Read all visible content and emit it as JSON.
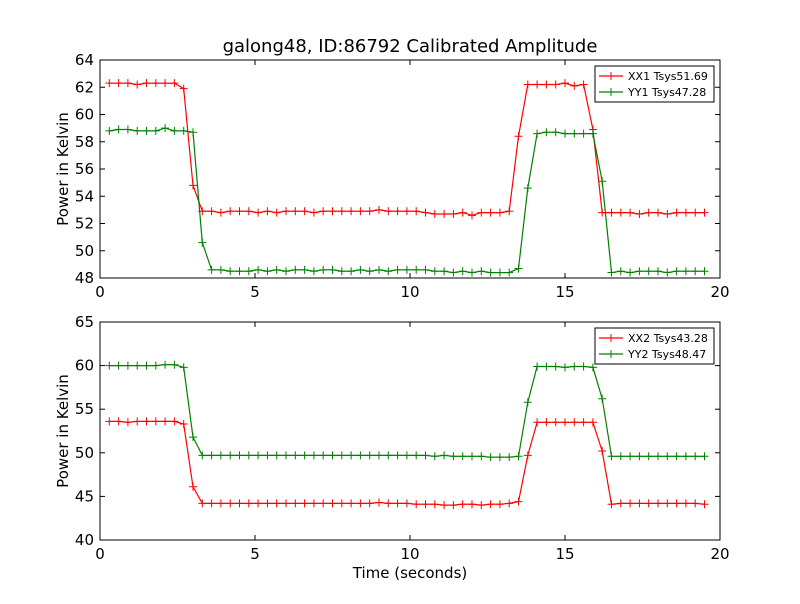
{
  "chart_data": [
    {
      "type": "line",
      "title": "galong48, ID:86792 Calibrated Amplitude",
      "xlabel": "",
      "ylabel": "Power in Kelvin",
      "xlim": [
        0,
        20
      ],
      "ylim": [
        48,
        64
      ],
      "xticks": [
        "0",
        "5",
        "10",
        "15",
        "20"
      ],
      "yticks": [
        "48",
        "50",
        "52",
        "54",
        "56",
        "58",
        "60",
        "62",
        "64"
      ],
      "legend_position": "top-right",
      "grid": false,
      "x": [
        0.3,
        0.6,
        0.9,
        1.2,
        1.5,
        1.8,
        2.1,
        2.4,
        2.7,
        3.0,
        3.3,
        3.6,
        3.9,
        4.2,
        4.5,
        4.8,
        5.1,
        5.4,
        5.7,
        6.0,
        6.3,
        6.6,
        6.9,
        7.2,
        7.5,
        7.8,
        8.1,
        8.4,
        8.7,
        9.0,
        9.3,
        9.6,
        9.9,
        10.2,
        10.5,
        10.8,
        11.1,
        11.4,
        11.7,
        12.0,
        12.3,
        12.6,
        12.9,
        13.2,
        13.5,
        13.8,
        14.1,
        14.4,
        14.7,
        15.0,
        15.3,
        15.6,
        15.9,
        16.2,
        16.5,
        16.8,
        17.1,
        17.4,
        17.7,
        18.0,
        18.3,
        18.6,
        18.9,
        19.2,
        19.5
      ],
      "series": [
        {
          "name": "XX1 Tsys51.69",
          "color": "#ff0000",
          "values": [
            62.3,
            62.3,
            62.3,
            62.2,
            62.3,
            62.3,
            62.3,
            62.3,
            61.9,
            54.8,
            52.9,
            52.9,
            52.8,
            52.9,
            52.9,
            52.9,
            52.8,
            52.9,
            52.8,
            52.9,
            52.9,
            52.9,
            52.8,
            52.9,
            52.9,
            52.9,
            52.9,
            52.9,
            52.9,
            53.0,
            52.9,
            52.9,
            52.9,
            52.9,
            52.8,
            52.7,
            52.7,
            52.7,
            52.8,
            52.6,
            52.8,
            52.8,
            52.8,
            52.9,
            58.4,
            62.2,
            62.2,
            62.2,
            62.2,
            62.3,
            62.1,
            62.2,
            58.9,
            52.8,
            52.8,
            52.8,
            52.8,
            52.7,
            52.8,
            52.8,
            52.7,
            52.8,
            52.8,
            52.8,
            52.8
          ]
        },
        {
          "name": "YY1 Tsys47.28",
          "color": "#008000",
          "values": [
            58.8,
            58.9,
            58.9,
            58.8,
            58.8,
            58.8,
            59.0,
            58.8,
            58.8,
            58.7,
            50.6,
            48.6,
            48.6,
            48.5,
            48.5,
            48.5,
            48.6,
            48.5,
            48.6,
            48.5,
            48.6,
            48.6,
            48.5,
            48.6,
            48.6,
            48.5,
            48.5,
            48.6,
            48.5,
            48.6,
            48.5,
            48.6,
            48.6,
            48.6,
            48.6,
            48.5,
            48.5,
            48.4,
            48.5,
            48.4,
            48.5,
            48.4,
            48.4,
            48.4,
            48.7,
            54.6,
            58.6,
            58.7,
            58.7,
            58.6,
            58.6,
            58.6,
            58.6,
            55.1,
            48.4,
            48.5,
            48.4,
            48.5,
            48.5,
            48.5,
            48.4,
            48.5,
            48.5,
            48.5,
            48.5
          ]
        }
      ]
    },
    {
      "type": "line",
      "title": "",
      "xlabel": "Time (seconds)",
      "ylabel": "Power in Kelvin",
      "xlim": [
        0,
        20
      ],
      "ylim": [
        40,
        65
      ],
      "xticks": [
        "0",
        "5",
        "10",
        "15",
        "20"
      ],
      "yticks": [
        "40",
        "45",
        "50",
        "55",
        "60",
        "65"
      ],
      "legend_position": "top-right",
      "grid": false,
      "x": [
        0.3,
        0.6,
        0.9,
        1.2,
        1.5,
        1.8,
        2.1,
        2.4,
        2.7,
        3.0,
        3.3,
        3.6,
        3.9,
        4.2,
        4.5,
        4.8,
        5.1,
        5.4,
        5.7,
        6.0,
        6.3,
        6.6,
        6.9,
        7.2,
        7.5,
        7.8,
        8.1,
        8.4,
        8.7,
        9.0,
        9.3,
        9.6,
        9.9,
        10.2,
        10.5,
        10.8,
        11.1,
        11.4,
        11.7,
        12.0,
        12.3,
        12.6,
        12.9,
        13.2,
        13.5,
        13.8,
        14.1,
        14.4,
        14.7,
        15.0,
        15.3,
        15.6,
        15.9,
        16.2,
        16.5,
        16.8,
        17.1,
        17.4,
        17.7,
        18.0,
        18.3,
        18.6,
        18.9,
        19.2,
        19.5
      ],
      "series": [
        {
          "name": "XX2 Tsys43.28",
          "color": "#ff0000",
          "values": [
            53.6,
            53.6,
            53.5,
            53.6,
            53.6,
            53.6,
            53.6,
            53.6,
            53.3,
            46.1,
            44.2,
            44.2,
            44.2,
            44.2,
            44.2,
            44.2,
            44.2,
            44.2,
            44.2,
            44.2,
            44.2,
            44.2,
            44.2,
            44.2,
            44.2,
            44.2,
            44.2,
            44.2,
            44.2,
            44.3,
            44.2,
            44.2,
            44.2,
            44.1,
            44.1,
            44.1,
            44.0,
            44.0,
            44.1,
            44.1,
            44.0,
            44.1,
            44.1,
            44.2,
            44.4,
            49.7,
            53.5,
            53.5,
            53.5,
            53.5,
            53.5,
            53.5,
            53.5,
            50.2,
            44.1,
            44.2,
            44.2,
            44.2,
            44.2,
            44.2,
            44.2,
            44.2,
            44.2,
            44.2,
            44.1
          ]
        },
        {
          "name": "YY2 Tsys48.47",
          "color": "#008000",
          "values": [
            60.0,
            60.0,
            60.0,
            60.0,
            60.0,
            60.0,
            60.1,
            60.1,
            59.8,
            51.8,
            49.7,
            49.7,
            49.7,
            49.7,
            49.7,
            49.7,
            49.7,
            49.7,
            49.7,
            49.7,
            49.7,
            49.7,
            49.7,
            49.7,
            49.7,
            49.7,
            49.7,
            49.7,
            49.7,
            49.7,
            49.7,
            49.7,
            49.7,
            49.7,
            49.7,
            49.6,
            49.7,
            49.6,
            49.6,
            49.6,
            49.6,
            49.5,
            49.5,
            49.5,
            49.6,
            55.8,
            59.9,
            59.9,
            59.9,
            59.8,
            59.9,
            59.9,
            59.8,
            56.2,
            49.6,
            49.6,
            49.6,
            49.6,
            49.6,
            49.6,
            49.6,
            49.6,
            49.6,
            49.6,
            49.6
          ]
        }
      ]
    }
  ]
}
